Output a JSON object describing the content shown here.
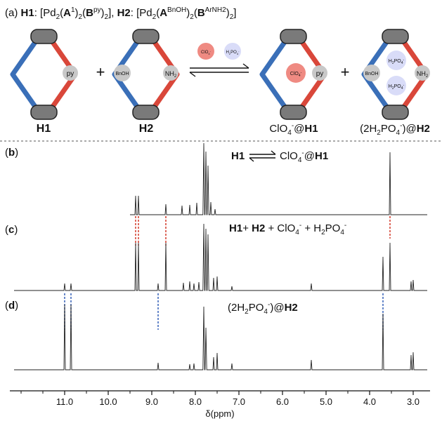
{
  "panel_a": {
    "letter": "a",
    "h1_label": "H1",
    "h1_formula_open": ": [Pd",
    "h1_formula_sub2": "2",
    "h1_A": "A",
    "h1_A_sup": "1",
    "h1_B": "B",
    "h1_B_sup": "py",
    "h2_label": "H2",
    "h2_formula_open": ": [Pd",
    "h2_A": "A",
    "h2_A_sup": "BnOH",
    "h2_B": "B",
    "h2_B_sup": "ArNH2",
    "plus": "+",
    "py": "py",
    "bnoh": "BnOH",
    "nh2": "NH",
    "nh2_sub": "2",
    "clo4": "ClO",
    "clo4_sub": "4",
    "clo4_sup": "-",
    "h2po4": "H",
    "h2po4_mid": "PO",
    "h2po4_sub_a": "2",
    "h2po4_sub_b": "4",
    "h2po4_sup": "-",
    "caption_h1": "H1",
    "caption_h2": "H2",
    "caption_clo4_h1_pre": "ClO",
    "caption_clo4_h1_post": "@",
    "caption_clo4_h1_host": "H1",
    "caption_h2po4_pre": "(2H",
    "caption_h2po4_mid": "PO",
    "caption_h2po4_post": ")@",
    "caption_h2po4_host": "H2"
  },
  "panel_b": {
    "letter": "b",
    "host": "H1",
    "guest_pre": "ClO",
    "guest_sub": "4",
    "guest_sup": "-",
    "guest_post": "@",
    "guest_host": "H1"
  },
  "panel_c": {
    "letter": "c",
    "h1": "H1",
    "plus1": "+ ",
    "h2": "H2",
    "plus2": " + ClO",
    "sub4": "4",
    "sup_minus": "-",
    "plus3": " + H",
    "sub2": "2",
    "po": "PO"
  },
  "panel_d": {
    "letter": "d",
    "pre": "(2H",
    "sub2": "2",
    "po": "PO",
    "sub4": "4",
    "sup_minus": "-",
    "post": ")@",
    "host": "H2"
  },
  "axis": {
    "label": "δ(ppm)",
    "ticks": [
      "11.0",
      "10.0",
      "9.0",
      "8.0",
      "7.0",
      "6.0",
      "5.0",
      "4.0",
      "3.0"
    ]
  },
  "colors": {
    "blue_strut": "#3a6fb8",
    "red_strut": "#d9473a",
    "pd_node": "#7a7a7a",
    "ligand_circle": "#c8c8c8",
    "clo4_fill": "#ef8a82",
    "h2po4_fill": "#d9dcf8",
    "red_dash": "#d43a2a",
    "blue_dash": "#3560b8"
  }
}
